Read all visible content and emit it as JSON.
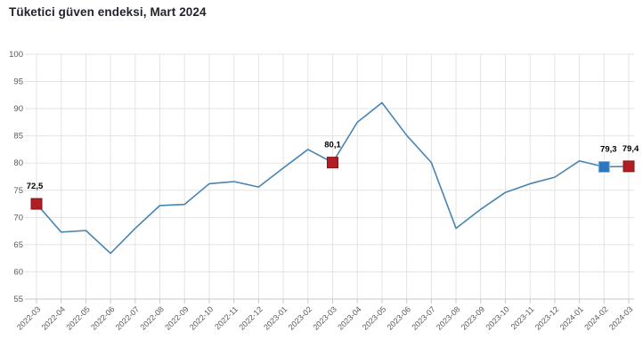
{
  "chart_data": {
    "type": "line",
    "title": "Tüketici güven endeksi, Mart 2024",
    "categories": [
      "2022-03",
      "2022-04",
      "2022-05",
      "2022-06",
      "2022-07",
      "2022-08",
      "2022-09",
      "2022-10",
      "2022-11",
      "2022-12",
      "2023-01",
      "2023-02",
      "2023-03",
      "2023-04",
      "2023-05",
      "2023-06",
      "2023-07",
      "2023-08",
      "2023-09",
      "2023-10",
      "2023-11",
      "2023-12",
      "2024-01",
      "2024-02",
      "2024-03"
    ],
    "values": [
      72.5,
      67.3,
      67.6,
      63.4,
      68.0,
      72.2,
      72.4,
      76.2,
      76.6,
      75.6,
      79.1,
      82.5,
      80.1,
      87.5,
      91.1,
      85.1,
      80.1,
      68.0,
      71.5,
      74.6,
      76.2,
      77.4,
      80.4,
      79.3,
      79.4
    ],
    "xlabel": "",
    "ylabel": "",
    "ylim": [
      55,
      100
    ],
    "ytick_step": 5,
    "grid": true,
    "legend": "none",
    "decimal_separator": ",",
    "line_color": "#4884b2",
    "colors": {
      "background": "#ffffff",
      "grid_line": "#e3e3e3",
      "axis_line": "#c9c9c9",
      "tick_label": "#595959",
      "title_text": "#20242c",
      "point_label": "#000000",
      "marker_red": "#b01e24",
      "marker_red_border": "#871418",
      "marker_blue": "#2c77bd",
      "marker_blue_border": "#85b5e0"
    },
    "marked_points": [
      {
        "category": "2022-03",
        "value": 72.5,
        "label": "72,5",
        "color": "#b01e24",
        "border": "#871418",
        "label_dx": -2
      },
      {
        "category": "2023-03",
        "value": 80.1,
        "label": "80,1",
        "color": "#b01e24",
        "border": "#871418",
        "label_dx": 0
      },
      {
        "category": "2024-02",
        "value": 79.3,
        "label": "79,3",
        "color": "#2c77bd",
        "border": "#85b5e0",
        "label_dx": 5
      },
      {
        "category": "2024-03",
        "value": 79.4,
        "label": "79,4",
        "color": "#b01e24",
        "border": "#871418",
        "label_dx": 2
      }
    ]
  }
}
